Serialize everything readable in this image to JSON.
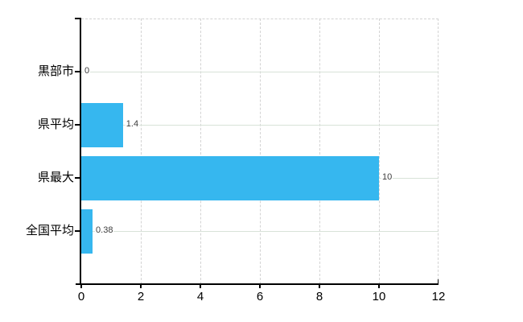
{
  "chart_data": {
    "type": "bar",
    "orientation": "horizontal",
    "title": "",
    "xlabel": "",
    "ylabel": "",
    "categories": [
      "黒部市",
      "県平均",
      "県最大",
      "全国平均"
    ],
    "values": [
      0,
      1.4,
      10,
      0.38
    ],
    "value_labels": [
      "0",
      "1.4",
      "10",
      "0.38"
    ],
    "xticks": [
      0,
      2,
      4,
      6,
      8,
      10,
      12
    ],
    "xtick_labels": [
      "0",
      "2",
      "4",
      "6",
      "8",
      "10",
      "12"
    ],
    "xlim": [
      0,
      12
    ],
    "grid": true,
    "legend": false,
    "colors": {
      "bar": "#36b7ef",
      "h_grid": "#d8e2d8",
      "v_grid": "#d3d3d3",
      "axis": "#000000",
      "value_label": "#3c3c3c",
      "tick_label": "#000000",
      "background": "#ffffff"
    }
  }
}
